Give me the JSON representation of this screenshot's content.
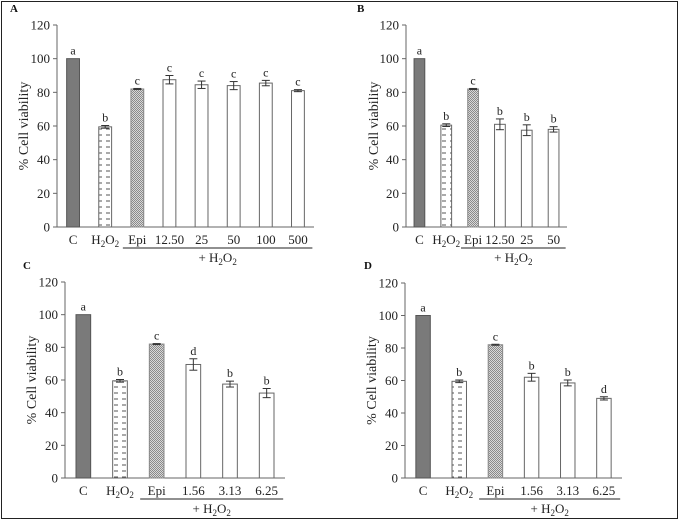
{
  "figure": {
    "ylabel": "% Cell viability",
    "group_label": "+ H2O2"
  },
  "chart_data": [
    {
      "type": "bar",
      "panel": "A",
      "title": "",
      "ylabel": "% Cell viability",
      "xlabel": "",
      "ylim": [
        0,
        120
      ],
      "yticks": [
        0,
        20,
        40,
        60,
        80,
        100,
        120
      ],
      "categories": [
        "C",
        "H2O2",
        "Epi",
        "12.50",
        "25",
        "50",
        "100",
        "500"
      ],
      "values": [
        100,
        59.5,
        82,
        87.5,
        84.5,
        84,
        85.5,
        81
      ],
      "errors": [
        0,
        0.8,
        0.3,
        2.5,
        2.2,
        2.4,
        1.6,
        0.6
      ],
      "letters": [
        "a",
        "b",
        "c",
        "c",
        "c",
        "c",
        "c",
        "c"
      ],
      "group_label": "+ H2O2",
      "group_start": "Epi",
      "grid": false
    },
    {
      "type": "bar",
      "panel": "B",
      "title": "",
      "ylabel": "% Cell viability",
      "xlabel": "",
      "ylim": [
        0,
        120
      ],
      "yticks": [
        0,
        20,
        40,
        60,
        80,
        100,
        120
      ],
      "categories": [
        "C",
        "H2O2",
        "Epi",
        "12.50",
        "25",
        "50"
      ],
      "values": [
        100,
        60.5,
        82,
        61,
        57.5,
        58
      ],
      "errors": [
        0,
        0.8,
        0.3,
        3.2,
        3.2,
        1.6
      ],
      "letters": [
        "a",
        "b",
        "c",
        "b",
        "b",
        "b"
      ],
      "group_label": "+ H2O2",
      "group_start": "Epi",
      "grid": false
    },
    {
      "type": "bar",
      "panel": "C",
      "title": "",
      "ylabel": "% Cell viability",
      "xlabel": "",
      "ylim": [
        0,
        120
      ],
      "yticks": [
        0,
        20,
        40,
        60,
        80,
        100,
        120
      ],
      "categories": [
        "C",
        "H2O2",
        "Epi",
        "1.56",
        "3.13",
        "6.25"
      ],
      "values": [
        100,
        59.5,
        82,
        69.5,
        57.5,
        52
      ],
      "errors": [
        0,
        0.8,
        0.3,
        3.5,
        1.8,
        2.8
      ],
      "letters": [
        "a",
        "b",
        "c",
        "d",
        "b",
        "b"
      ],
      "group_label": "+ H2O2",
      "group_start": "Epi",
      "grid": false
    },
    {
      "type": "bar",
      "panel": "D",
      "title": "",
      "ylabel": "% Cell viability",
      "xlabel": "",
      "ylim": [
        0,
        120
      ],
      "yticks": [
        0,
        20,
        40,
        60,
        80,
        100,
        120
      ],
      "categories": [
        "C",
        "H2O2",
        "Epi",
        "1.56",
        "3.13",
        "6.25"
      ],
      "values": [
        100,
        59.5,
        82,
        62,
        58.5,
        49
      ],
      "errors": [
        0,
        0.8,
        0.3,
        2.4,
        1.8,
        1.0
      ],
      "letters": [
        "a",
        "b",
        "c",
        "b",
        "b",
        "d"
      ],
      "group_label": "+ H2O2",
      "group_start": "Epi",
      "grid": false
    }
  ],
  "colors": {
    "control_fill": "#7a7a7a",
    "control_stroke": "#555555",
    "h2o2_fill": "#ffffff",
    "epi_fill": "#c8c8c8",
    "treatment_fill": "#ffffff",
    "bar_stroke": "#666666",
    "axis": "#666666",
    "text": "#222222"
  }
}
